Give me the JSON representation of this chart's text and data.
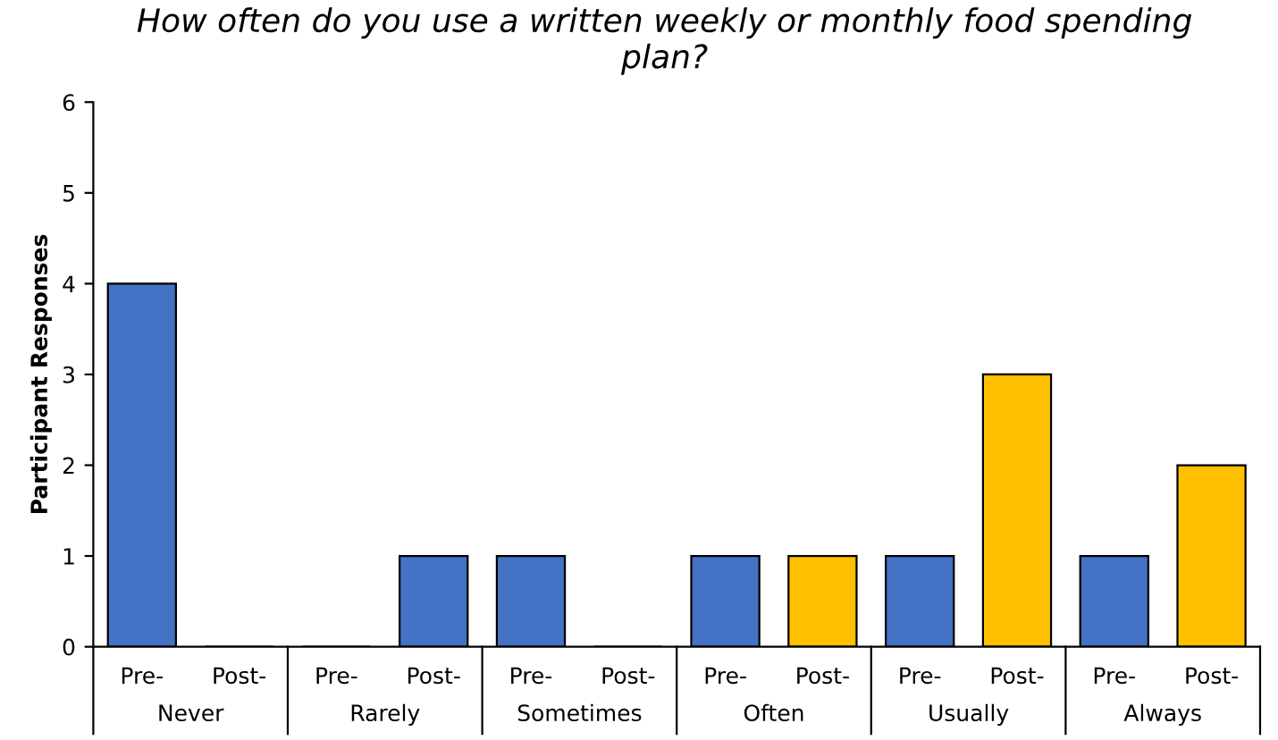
{
  "chart_data": {
    "type": "bar",
    "title": "How often do you use a written weekly or monthly food spending plan?",
    "ylabel": "Participant Responses",
    "categories": [
      "Pre-",
      "Post-",
      "Pre-",
      "Post-",
      "Pre-",
      "Post-",
      "Pre-",
      "Post-",
      "Pre-",
      "Post-",
      "Pre-",
      "Post-"
    ],
    "values": [
      4,
      0,
      0,
      1,
      1,
      0,
      1,
      1,
      1,
      3,
      1,
      2
    ],
    "colors": [
      "#4472c4",
      "#4472c4",
      "#4472c4",
      "#4472c4",
      "#4472c4",
      "#4472c4",
      "#4472c4",
      "#ffc000",
      "#4472c4",
      "#ffc000",
      "#4472c4",
      "#ffc000"
    ],
    "annotations": [
      "Never",
      "Rarely",
      "Sometimes",
      "Often",
      "Usually",
      "Always"
    ],
    "ylim": [
      0,
      6
    ],
    "yticks": [
      0,
      1,
      2,
      3,
      4,
      5,
      6
    ],
    "grid": false,
    "legend": false
  }
}
